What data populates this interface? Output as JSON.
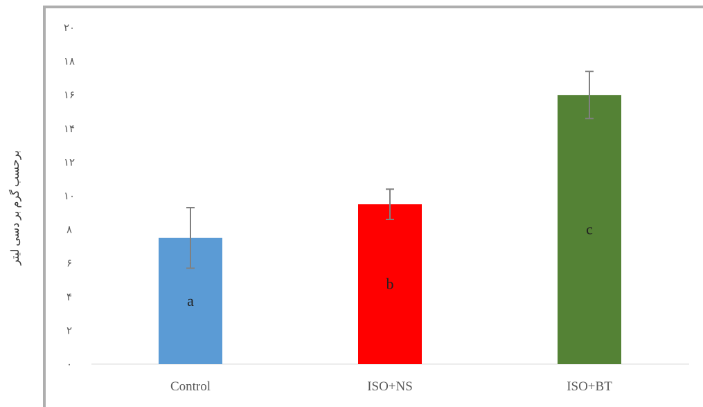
{
  "chart_data": {
    "type": "bar",
    "categories": [
      "Control",
      "ISO+NS",
      "ISO+BT"
    ],
    "values": [
      7.5,
      9.5,
      16
    ],
    "errors": [
      1.8,
      0.9,
      1.4
    ],
    "bar_labels": [
      "a",
      "b",
      "c"
    ],
    "colors": [
      "#5b9bd5",
      "#ff0000",
      "#548235"
    ],
    "ylabel": "برحسب گرم بر دسی لیتر",
    "ylim": [
      0,
      20
    ],
    "yticks": [
      "۰",
      "۲",
      "۴",
      "۶",
      "۸",
      "۱۰",
      "۱۲",
      "۱۴",
      "۱۶",
      "۱۸",
      "۲۰"
    ],
    "grid": false,
    "legend": "none"
  }
}
